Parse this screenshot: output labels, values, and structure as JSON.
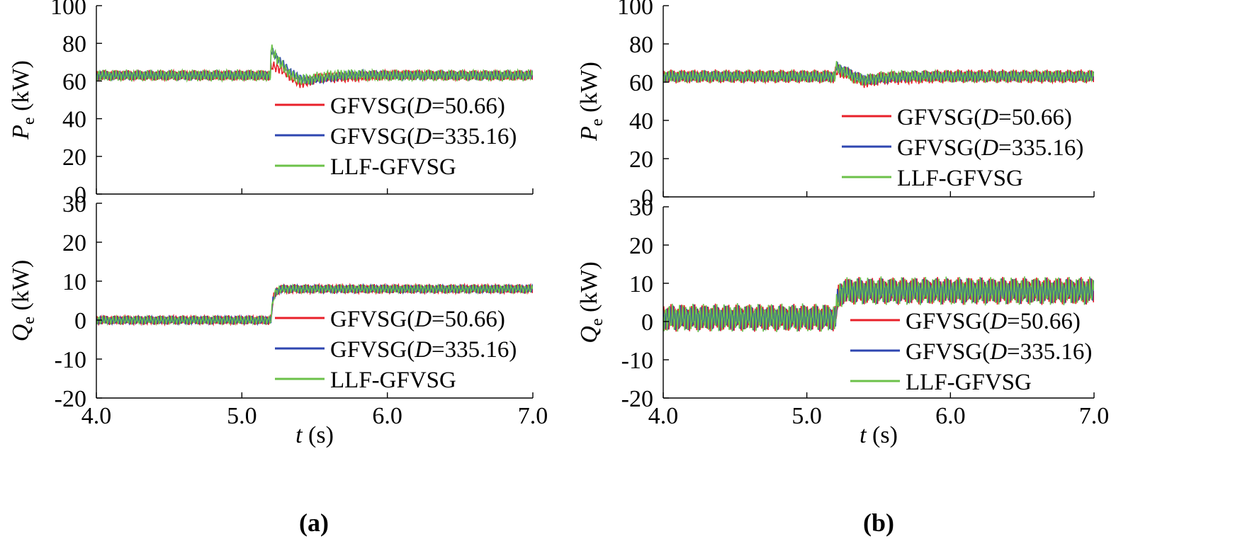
{
  "colors": {
    "red": "#e8202a",
    "blue": "#2e46b0",
    "green": "#6cc14a"
  },
  "chart_data": [
    {
      "type": "line",
      "panel": "a",
      "caption": "(a)",
      "legend_names": [
        "GFVSG(D=50.66)",
        "GFVSG(D=335.16)",
        "LLF-GFVSG"
      ],
      "legend_placement": "center-right",
      "x_axis": {
        "label_var": "t",
        "label_unit": " (s)",
        "range": [
          4.0,
          7.0
        ],
        "ticks": [
          "4.0",
          "5.0",
          "6.0",
          "7.0"
        ]
      },
      "subplots": [
        {
          "ylabel_var": "P",
          "ylabel_sub": "e",
          "ylabel_unit": " (kW)",
          "ylim": [
            0,
            100
          ],
          "yticks": [
            "0",
            "20",
            "40",
            "60",
            "80",
            "100"
          ],
          "step_time": 5.2,
          "series": [
            {
              "name": "GFVSG(D=50.66)",
              "color_key": "red",
              "base_before": 63,
              "base_after": 63,
              "ripple": 2.5,
              "peak": 68,
              "dip": 55,
              "settle": 0.5
            },
            {
              "name": "GFVSG(D=335.16)",
              "color_key": "blue",
              "base_before": 63,
              "base_after": 63,
              "ripple": 2.2,
              "peak": 76,
              "dip": 62,
              "settle": 0.2
            },
            {
              "name": "LLF-GFVSG",
              "color_key": "green",
              "base_before": 63,
              "base_after": 63,
              "ripple": 2.8,
              "peak": 77,
              "dip": 62,
              "settle": 0.1
            }
          ]
        },
        {
          "ylabel_var": "Q",
          "ylabel_sub": "e",
          "ylabel_unit": " (kW)",
          "ylim": [
            -20,
            30
          ],
          "yticks": [
            "-20",
            "-10",
            "0",
            "10",
            "20",
            "30"
          ],
          "step_time": 5.2,
          "series": [
            {
              "name": "GFVSG(D=50.66)",
              "color_key": "red",
              "base_before": 0,
              "base_after": 8,
              "ripple": 1.1
            },
            {
              "name": "GFVSG(D=335.16)",
              "color_key": "blue",
              "base_before": 0,
              "base_after": 8,
              "ripple": 1.0
            },
            {
              "name": "LLF-GFVSG",
              "color_key": "green",
              "base_before": 0,
              "base_after": 8,
              "ripple": 1.0
            }
          ]
        }
      ]
    },
    {
      "type": "line",
      "panel": "b",
      "caption": "(b)",
      "legend_names": [
        "GFVSG(D=50.66)",
        "GFVSG(D=335.16)",
        "LLF-GFVSG"
      ],
      "legend_placement": "center-right",
      "x_axis": {
        "label_var": "t",
        "label_unit": " (s)",
        "range": [
          4.0,
          7.0
        ],
        "ticks": [
          "4.0",
          "5.0",
          "6.0",
          "7.0"
        ]
      },
      "subplots": [
        {
          "ylabel_var": "P",
          "ylabel_sub": "e",
          "ylabel_unit": " (kW)",
          "ylim": [
            0,
            100
          ],
          "yticks": [
            "0",
            "20",
            "40",
            "60",
            "80",
            "100"
          ],
          "step_time": 5.2,
          "series": [
            {
              "name": "GFVSG(D=50.66)",
              "color_key": "red",
              "base_before": 63,
              "base_after": 63,
              "ripple": 3.2,
              "peak": 66,
              "dip": 58,
              "settle": 0.5
            },
            {
              "name": "GFVSG(D=335.16)",
              "color_key": "blue",
              "base_before": 63,
              "base_after": 63,
              "ripple": 2.6,
              "peak": 68,
              "dip": 61,
              "settle": 0.2
            },
            {
              "name": "LLF-GFVSG",
              "color_key": "green",
              "base_before": 63,
              "base_after": 63,
              "ripple": 3.0,
              "peak": 68,
              "dip": 61,
              "settle": 0.1
            }
          ]
        },
        {
          "ylabel_var": "Q",
          "ylabel_sub": "e",
          "ylabel_unit": " (kW)",
          "ylim": [
            -20,
            30
          ],
          "yticks": [
            "-20",
            "-10",
            "0",
            "10",
            "20",
            "30"
          ],
          "step_time": 5.2,
          "series": [
            {
              "name": "GFVSG(D=50.66)",
              "color_key": "red",
              "base_before": 1,
              "base_after": 8,
              "ripple": 3.2
            },
            {
              "name": "GFVSG(D=335.16)",
              "color_key": "blue",
              "base_before": 1,
              "base_after": 8,
              "ripple": 3.0
            },
            {
              "name": "LLF-GFVSG",
              "color_key": "green",
              "base_before": 1,
              "base_after": 8,
              "ripple": 3.3
            }
          ]
        }
      ]
    }
  ]
}
